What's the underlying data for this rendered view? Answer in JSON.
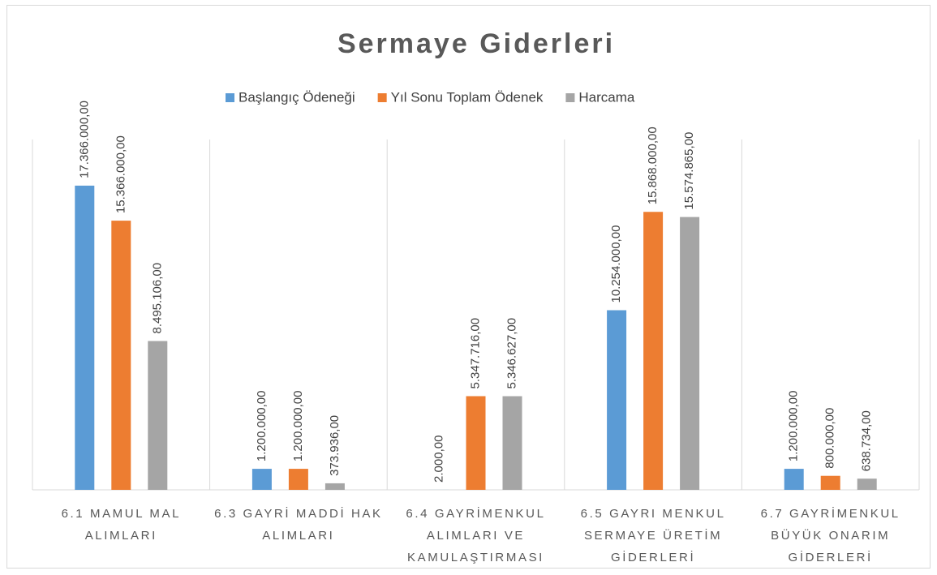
{
  "chart_data": {
    "type": "bar",
    "title": "Sermaye Giderleri",
    "categories": [
      "6.1 MAMUL MAL ALIMLARI",
      "6.3 GAYRİ MADDİ HAK ALIMLARI",
      "6.4 GAYRİMENKUL ALIMLARI VE KAMULAŞTIRMASI",
      "6.5 GAYRI MENKUL SERMAYE ÜRETİM GİDERLERİ",
      "6.7 GAYRİMENKUL BÜYÜK ONARIM GİDERLERİ"
    ],
    "series": [
      {
        "name": "Başlangıç Ödeneği",
        "color": "#5b9bd5",
        "values": [
          17366000,
          1200000,
          2000,
          10254000,
          1200000
        ],
        "value_labels": [
          "17.366.000,00",
          "1.200.000,00",
          "2.000,00",
          "10.254.000,00",
          "1.200.000,00"
        ]
      },
      {
        "name": "Yıl Sonu Toplam Ödenek",
        "color": "#ed7d31",
        "values": [
          15366000,
          1200000,
          5347716,
          15868000,
          800000
        ],
        "value_labels": [
          "15.366.000,00",
          "1.200.000,00",
          "5.347.716,00",
          "15.868.000,00",
          "800.000,00"
        ]
      },
      {
        "name": "Harcama",
        "color": "#a5a5a5",
        "values": [
          8495106,
          373936,
          5346627,
          15574865,
          638734
        ],
        "value_labels": [
          "8.495.106,00",
          "373.936,00",
          "5.346.627,00",
          "15.574.865,00",
          "638.734,00"
        ]
      }
    ],
    "ylim": [
      0,
      20000000
    ],
    "legend": "top"
  }
}
